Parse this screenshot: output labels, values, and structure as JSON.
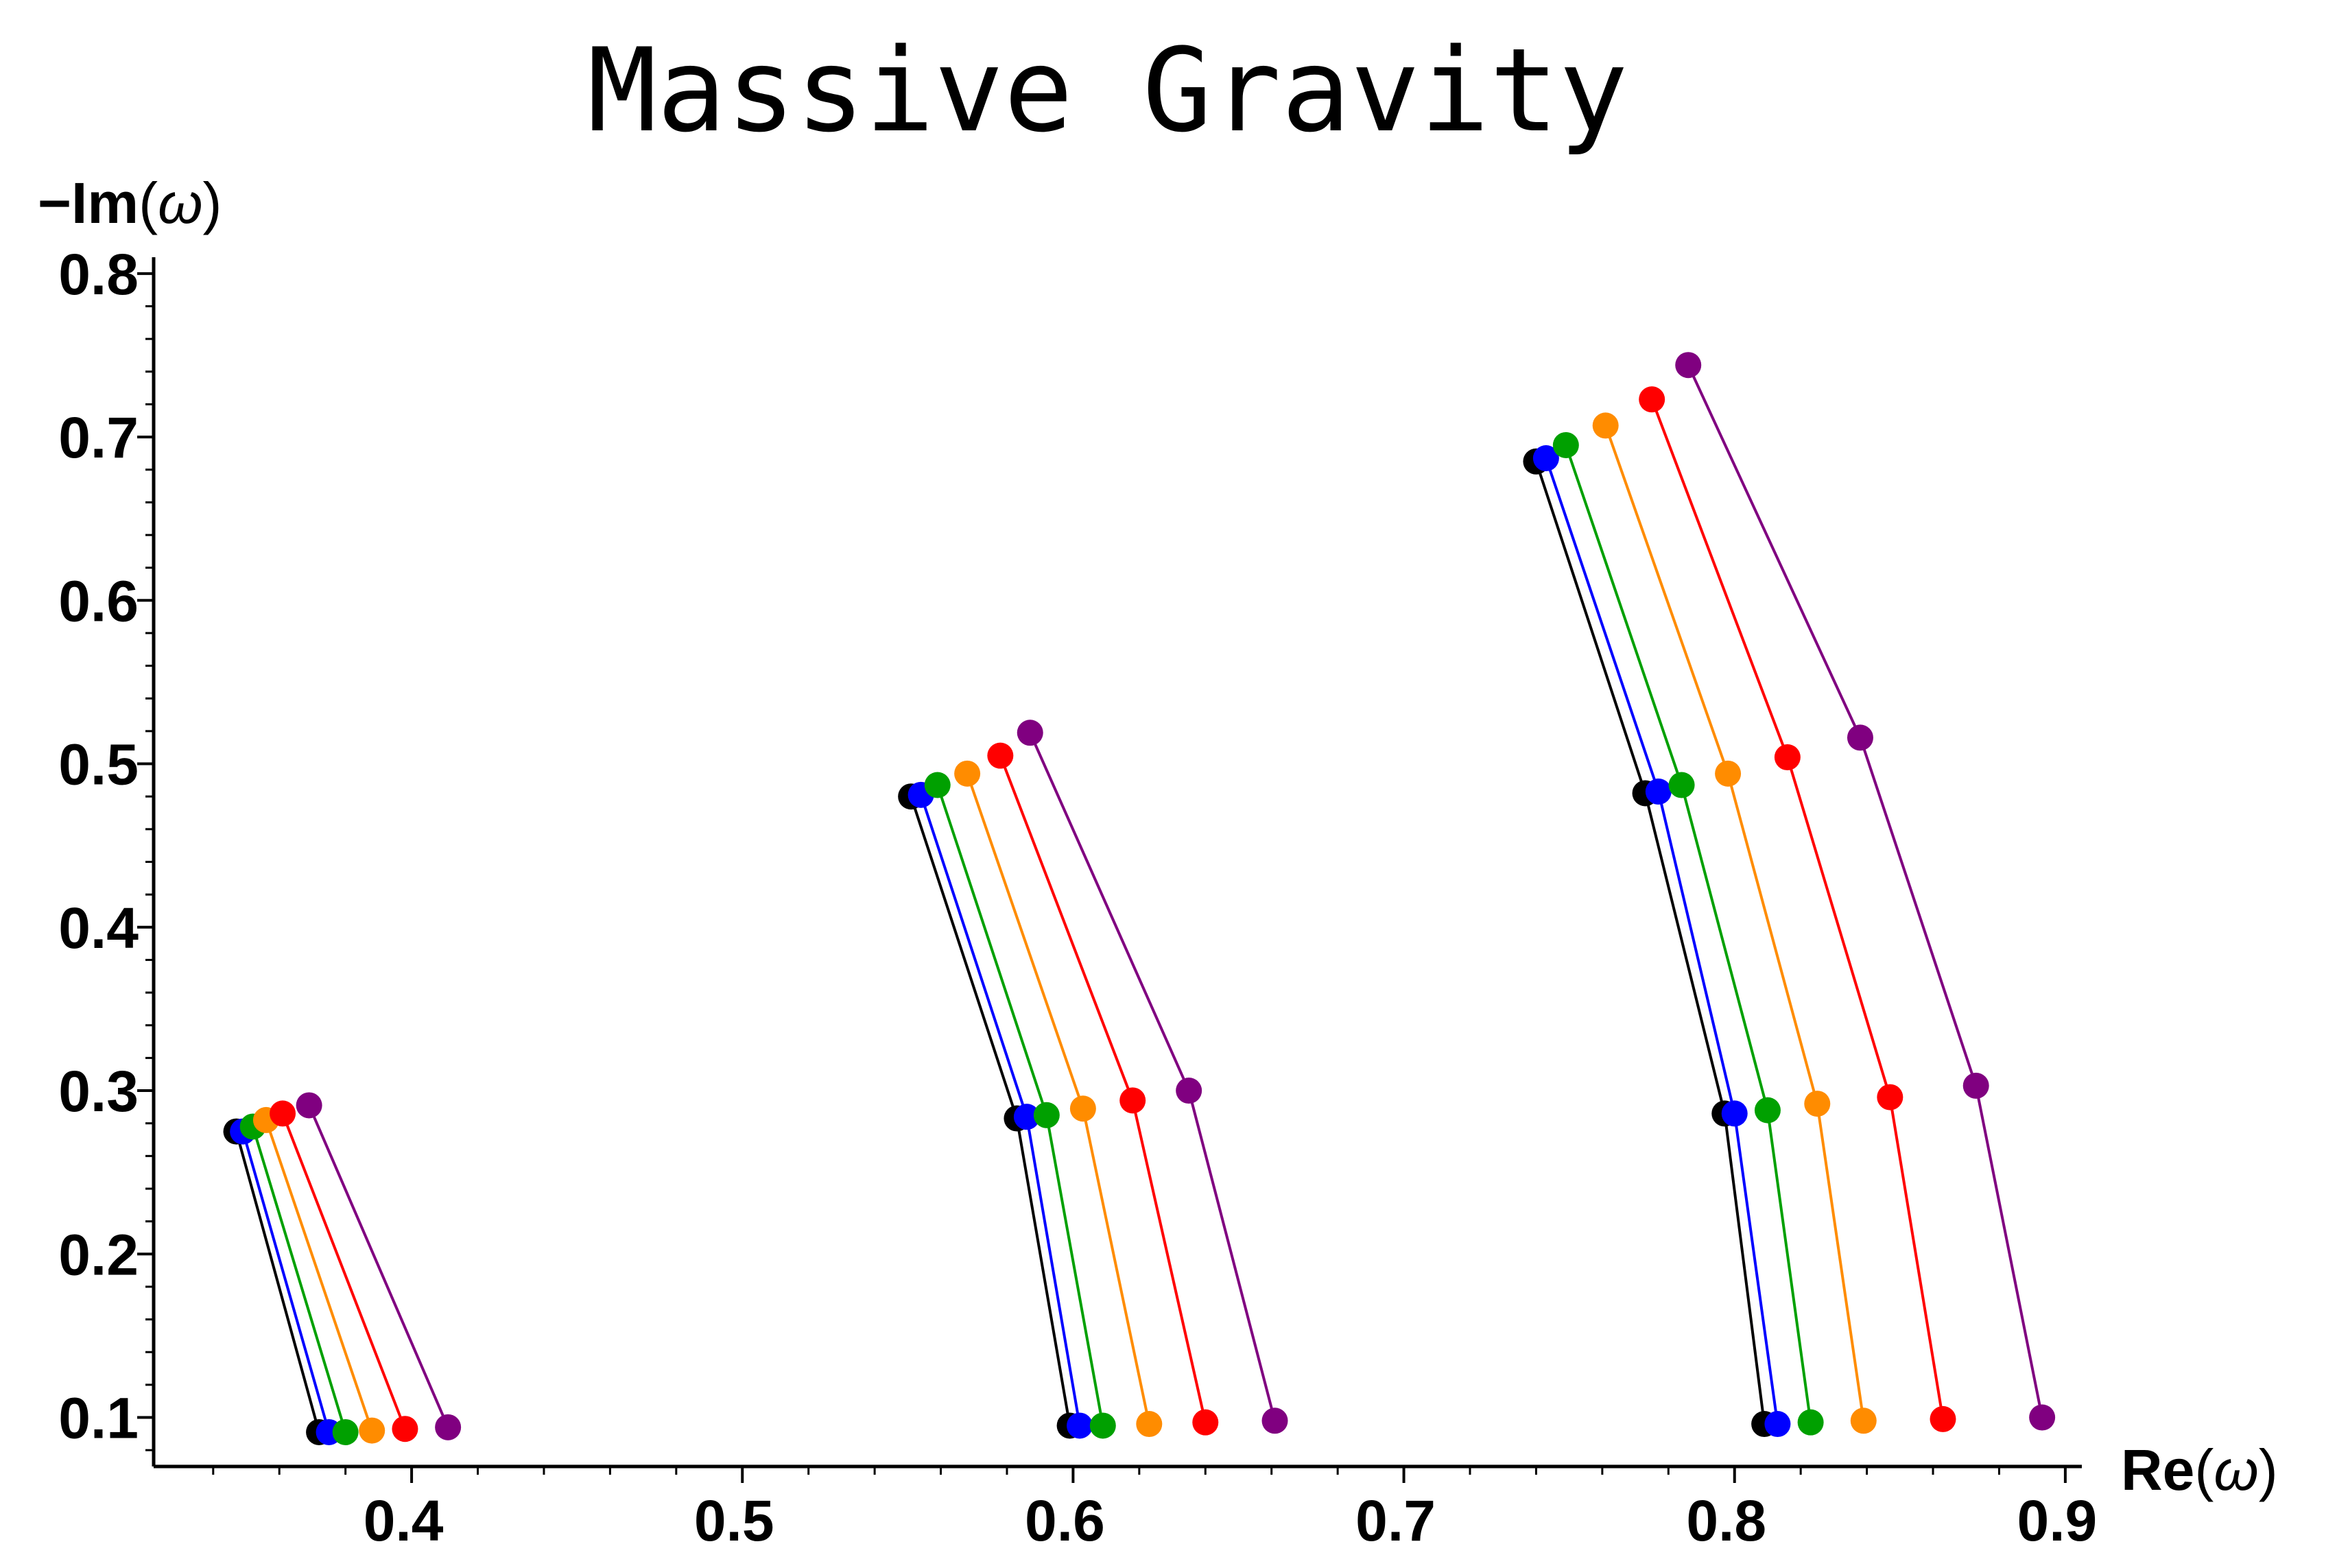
{
  "chart_data": {
    "type": "scatter",
    "title": "Massive Gravity",
    "xlabel": {
      "bold": "Re",
      "open": "(",
      "sym": "ω",
      "close": ")"
    },
    "ylabel": {
      "bold": "−Im",
      "open": "(",
      "sym": "ω",
      "close": ")"
    },
    "xlim": [
      0.322,
      0.905
    ],
    "ylim": [
      0.07,
      0.81
    ],
    "xticks": [
      "0.4",
      "0.5",
      "0.6",
      "0.7",
      "0.8",
      "0.9"
    ],
    "yticks": [
      "0.1",
      "0.2",
      "0.3",
      "0.4",
      "0.5",
      "0.6",
      "0.7",
      "0.8"
    ],
    "grid": false,
    "legend": "none",
    "series": [
      {
        "color": "#000000",
        "groups": [
          [
            [
              0.347,
              0.275
            ],
            [
              0.372,
              0.091
            ]
          ],
          [
            [
              0.551,
              0.48
            ],
            [
              0.583,
              0.283
            ],
            [
              0.599,
              0.095
            ]
          ],
          [
            [
              0.74,
              0.685
            ],
            [
              0.773,
              0.482
            ],
            [
              0.797,
              0.286
            ],
            [
              0.809,
              0.096
            ]
          ]
        ]
      },
      {
        "color": "#0000ff",
        "groups": [
          [
            [
              0.349,
              0.275
            ],
            [
              0.375,
              0.091
            ]
          ],
          [
            [
              0.554,
              0.481
            ],
            [
              0.586,
              0.284
            ],
            [
              0.602,
              0.095
            ]
          ],
          [
            [
              0.743,
              0.687
            ],
            [
              0.777,
              0.483
            ],
            [
              0.8,
              0.286
            ],
            [
              0.813,
              0.096
            ]
          ]
        ]
      },
      {
        "color": "#00a000",
        "groups": [
          [
            [
              0.352,
              0.278
            ],
            [
              0.38,
              0.091
            ]
          ],
          [
            [
              0.559,
              0.487
            ],
            [
              0.592,
              0.285
            ],
            [
              0.609,
              0.095
            ]
          ],
          [
            [
              0.749,
              0.695
            ],
            [
              0.784,
              0.487
            ],
            [
              0.81,
              0.288
            ],
            [
              0.823,
              0.097
            ]
          ]
        ]
      },
      {
        "color": "#ff8c00",
        "groups": [
          [
            [
              0.356,
              0.282
            ],
            [
              0.388,
              0.092
            ]
          ],
          [
            [
              0.568,
              0.494
            ],
            [
              0.603,
              0.289
            ],
            [
              0.623,
              0.096
            ]
          ],
          [
            [
              0.761,
              0.707
            ],
            [
              0.798,
              0.494
            ],
            [
              0.825,
              0.292
            ],
            [
              0.839,
              0.098
            ]
          ]
        ]
      },
      {
        "color": "#ff0000",
        "groups": [
          [
            [
              0.361,
              0.286
            ],
            [
              0.398,
              0.093
            ]
          ],
          [
            [
              0.578,
              0.505
            ],
            [
              0.618,
              0.294
            ],
            [
              0.64,
              0.097
            ]
          ],
          [
            [
              0.775,
              0.723
            ],
            [
              0.816,
              0.504
            ],
            [
              0.847,
              0.296
            ],
            [
              0.863,
              0.099
            ]
          ]
        ]
      },
      {
        "color": "#800080",
        "groups": [
          [
            [
              0.369,
              0.291
            ],
            [
              0.411,
              0.094
            ]
          ],
          [
            [
              0.587,
              0.519
            ],
            [
              0.635,
              0.3
            ],
            [
              0.661,
              0.098
            ]
          ],
          [
            [
              0.786,
              0.744
            ],
            [
              0.838,
              0.516
            ],
            [
              0.873,
              0.303
            ],
            [
              0.893,
              0.1
            ]
          ]
        ]
      }
    ]
  }
}
